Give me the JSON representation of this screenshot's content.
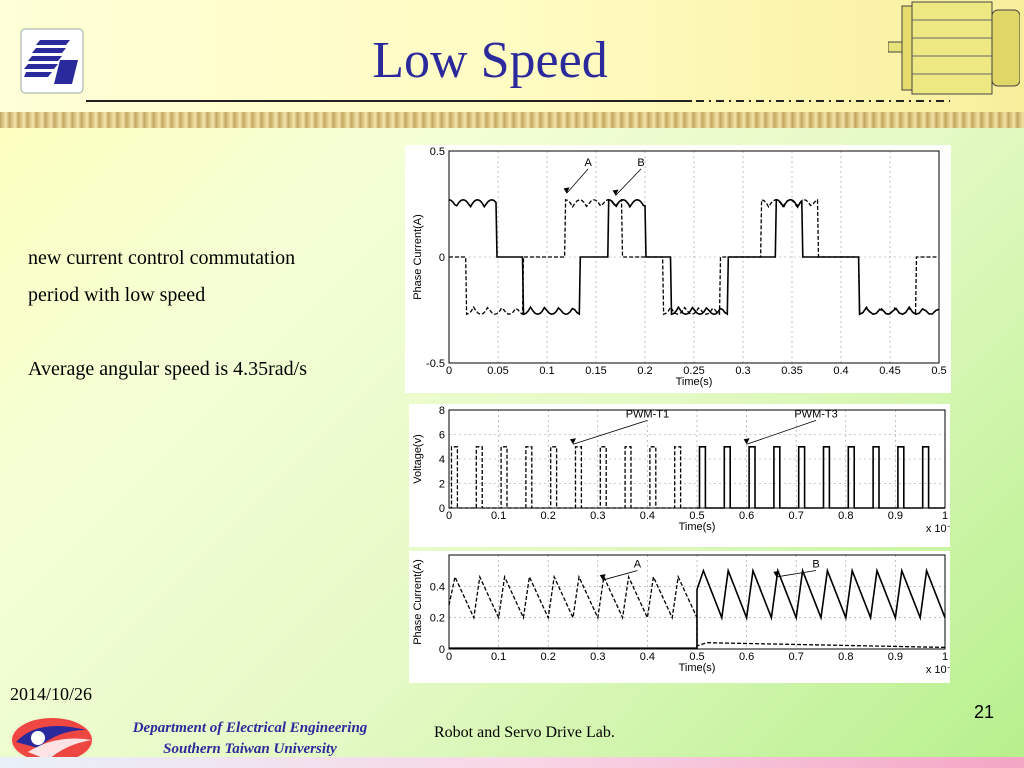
{
  "slide": {
    "title": "Low Speed",
    "date": "2014/10/26",
    "page_number": "21",
    "department": "Department of Electrical Engineering",
    "university": "Southern Taiwan University",
    "lab": "Robot and Servo Drive Lab."
  },
  "text": {
    "line1": "new current control commutation",
    "line2": "period with low speed",
    "line3": "Average angular speed is 4.35rad/s"
  },
  "chart_data": [
    {
      "type": "line",
      "ylabel": "Phase Current(A)",
      "xlabel": "Time(s)",
      "xlim": [
        0,
        0.5
      ],
      "ylim": [
        -0.5,
        0.5
      ],
      "xticks": [
        "0",
        "0.05",
        "0.1",
        "0.15",
        "0.2",
        "0.25",
        "0.3",
        "0.35",
        "0.4",
        "0.45",
        "0.5"
      ],
      "yticks": [
        "0.5",
        "0",
        "-0.5"
      ],
      "annotations": [
        "A",
        "B"
      ],
      "series": [
        {
          "name": "A",
          "style": "dashed",
          "x": [
            0,
            0.017,
            0.018,
            0.075,
            0.076,
            0.118,
            0.119,
            0.176,
            0.177,
            0.218,
            0.219,
            0.276,
            0.277,
            0.318,
            0.319,
            0.376,
            0.377,
            0.418,
            0.419,
            0.476,
            0.477,
            0.5
          ],
          "y": [
            0,
            0,
            -0.27,
            -0.27,
            0,
            0,
            0.27,
            0.27,
            0,
            0,
            -0.27,
            -0.27,
            0,
            0,
            0.27,
            0.27,
            0,
            0,
            -0.27,
            -0.27,
            0,
            0
          ]
        },
        {
          "name": "B",
          "style": "solid",
          "x": [
            0,
            0.048,
            0.049,
            0.075,
            0.076,
            0.133,
            0.134,
            0.162,
            0.163,
            0.2,
            0.201,
            0.226,
            0.227,
            0.284,
            0.285,
            0.333,
            0.334,
            0.36,
            0.361,
            0.418,
            0.419,
            0.5
          ],
          "y": [
            0.27,
            0.27,
            0,
            0,
            -0.27,
            -0.27,
            0,
            0,
            0.27,
            0.27,
            0,
            0,
            -0.27,
            -0.27,
            0,
            0,
            0.27,
            0.27,
            0,
            0,
            -0.27,
            -0.27
          ]
        }
      ]
    },
    {
      "type": "line",
      "ylabel": "Voltage(v)",
      "xlabel": "Time(s)",
      "x_multiplier": "x 10⁻³",
      "xlim": [
        0,
        1
      ],
      "ylim": [
        0,
        8
      ],
      "xticks": [
        "0",
        "0.1",
        "0.2",
        "0.3",
        "0.4",
        "0.5",
        "0.6",
        "0.7",
        "0.8",
        "0.9",
        "1"
      ],
      "yticks": [
        "8",
        "6",
        "4",
        "2",
        "0"
      ],
      "annotations": [
        "PWM-T1",
        "PWM-T3"
      ],
      "series": [
        {
          "name": "PWM-T1",
          "style": "dashed",
          "pulse_height": 5,
          "pulse_period": 0.05,
          "pulse_width": 0.012,
          "x_start": 0.0,
          "x_end": 0.5
        },
        {
          "name": "PWM-T3",
          "style": "solid",
          "pulse_height": 5,
          "pulse_period": 0.05,
          "pulse_width": 0.012,
          "x_start": 0.5,
          "x_end": 1.0
        }
      ]
    },
    {
      "type": "line",
      "ylabel": "Phase Current(A)",
      "xlabel": "Time(s)",
      "x_multiplier": "x 10⁻³",
      "xlim": [
        0,
        1
      ],
      "ylim": [
        0,
        0.6
      ],
      "xticks": [
        "0",
        "0.1",
        "0.2",
        "0.3",
        "0.4",
        "0.5",
        "0.6",
        "0.7",
        "0.8",
        "0.9",
        "1"
      ],
      "yticks": [
        "0.4",
        "0.2",
        "0"
      ],
      "annotations": [
        "A",
        "B"
      ],
      "series": [
        {
          "name": "A",
          "style": "dashed",
          "period": 0.05,
          "x_start": 0.0,
          "x_end": 0.5,
          "peak": 0.46,
          "trough": 0.2
        },
        {
          "name": "B",
          "style": "solid",
          "period": 0.05,
          "x_start": 0.5,
          "x_end": 1.0,
          "peak": 0.5,
          "trough": 0.2
        }
      ]
    }
  ]
}
